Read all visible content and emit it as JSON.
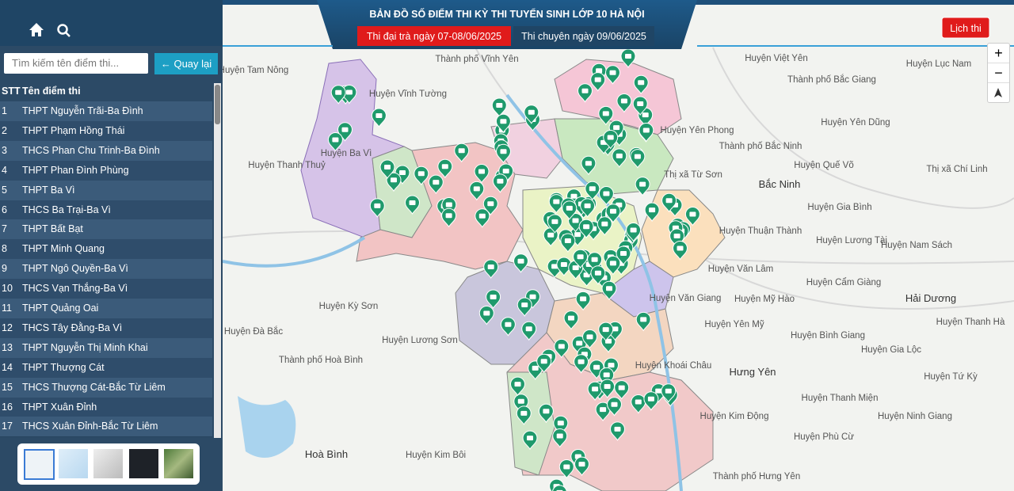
{
  "header": {
    "title": "BẢN ĐỒ SỐ ĐIỂM THI KỲ THI TUYỂN SINH LỚP 10 HÀ NỘI",
    "tab_regular": "Thi đại trà ngày 07-08/06/2025",
    "tab_specialized": "Thi chuyên ngày 09/06/2025",
    "schedule": "Lịch thi"
  },
  "sidebar": {
    "search_placeholder": "Tìm kiếm tên điểm thi...",
    "back": "Quay lại",
    "columns": [
      "STT",
      "Tên điểm thi"
    ],
    "rows": [
      [
        1,
        "THPT Nguyễn Trãi-Ba Đình"
      ],
      [
        2,
        "THPT Phạm Hồng Thái"
      ],
      [
        3,
        "THCS Phan Chu Trinh-Ba Đình"
      ],
      [
        4,
        "THPT Phan Đình Phùng"
      ],
      [
        5,
        "THPT Ba Vì"
      ],
      [
        6,
        "THCS Ba Trại-Ba Vì"
      ],
      [
        7,
        "THPT Bất Bạt"
      ],
      [
        8,
        "THPT Minh Quang"
      ],
      [
        9,
        "THPT Ngô Quyền-Ba Vì"
      ],
      [
        10,
        "THCS Vạn Thắng-Ba Vì"
      ],
      [
        11,
        "THPT Quảng Oai"
      ],
      [
        12,
        "THCS Tây Đằng-Ba Vì"
      ],
      [
        13,
        "THPT Nguyễn Thị Minh Khai"
      ],
      [
        14,
        "THPT Thượng Cát"
      ],
      [
        15,
        "THCS Thượng Cát-Bắc Từ Liêm"
      ],
      [
        16,
        "THPT Xuân Đỉnh"
      ],
      [
        17,
        "THCS Xuân Đỉnh-Bắc Từ Liêm"
      ]
    ]
  },
  "map": {
    "zoom_in": "+",
    "zoom_out": "−",
    "labels": [
      "Huyện Tam Nông",
      "Thành phố Vĩnh Yên",
      "Huyện Vĩnh Tường",
      "Huyện Ba Vì",
      "Huyện Thanh Thuỷ",
      "Huyện Việt Yên",
      "Huyện Lục Nam",
      "Thành phố Bắc Giang",
      "Huyện Yên Dũng",
      "Huyện Yên Phong",
      "Thành phố Bắc Ninh",
      "Thị xã Từ Sơn",
      "Huyện Quế Võ",
      "Thị xã Chí Linh",
      "Bắc Ninh",
      "Huyện Gia Bình",
      "Huyện Thuận Thành",
      "Huyện Lương Tài",
      "Huyện Nam Sách",
      "Huyện Văn Lâm",
      "Huyện Cẩm Giàng",
      "Hải Dương",
      "Huyện Mỹ Hào",
      "Huyện Văn Giang",
      "Huyện Yên Mỹ",
      "Huyện Thanh Hà",
      "Huyện Bình Giang",
      "Huyện Gia Lộc",
      "Huyện Kỳ Sơn",
      "Huyện Lương Sơn",
      "Huyện Đà Bắc",
      "Thành phố Hoà Bình",
      "Huyện Khoái Châu",
      "Hưng Yên",
      "Huyện Tứ Kỳ",
      "Huyện Thanh Miện",
      "Huyện Kim Động",
      "Huyện Ninh Giang",
      "Hoà Bình",
      "Huyện Kim Bôi",
      "Huyện Phù Cừ",
      "Thành phố Hưng Yên"
    ]
  }
}
